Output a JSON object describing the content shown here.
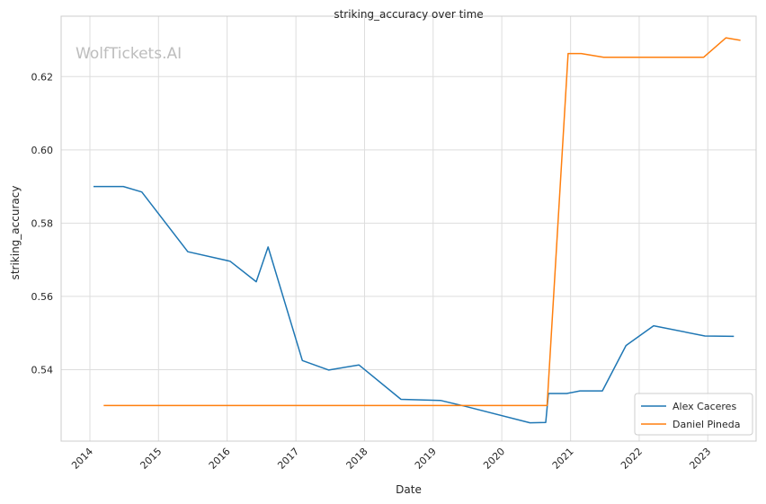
{
  "watermark": "WolfTickets.AI",
  "chart_data": {
    "type": "line",
    "title": "striking_accuracy over time",
    "xlabel": "Date",
    "ylabel": "striking_accuracy",
    "xlim": [
      "2013-08-01",
      "2023-09-15"
    ],
    "ylim": [
      0.5205,
      0.6365
    ],
    "x_ticks": [
      "2014",
      "2015",
      "2016",
      "2017",
      "2018",
      "2019",
      "2020",
      "2021",
      "2022",
      "2023"
    ],
    "y_ticks": [
      0.54,
      0.56,
      0.58,
      0.6,
      0.62
    ],
    "y_tick_labels": [
      "0.54",
      "0.56",
      "0.58",
      "0.60",
      "0.62"
    ],
    "grid": true,
    "legend_position": "bottom-right",
    "series": [
      {
        "name": "Alex Caceres",
        "color": "#1f77b4",
        "points": [
          [
            "2014-01-20",
            0.59
          ],
          [
            "2014-06-28",
            0.59
          ],
          [
            "2014-10-04",
            0.5885
          ],
          [
            "2015-06-06",
            0.5722
          ],
          [
            "2016-01-17",
            0.5696
          ],
          [
            "2016-06-04",
            0.564
          ],
          [
            "2016-08-06",
            0.5735
          ],
          [
            "2017-02-04",
            0.5425
          ],
          [
            "2017-06-25",
            0.5399
          ],
          [
            "2017-12-02",
            0.5413
          ],
          [
            "2018-07-14",
            0.5319
          ],
          [
            "2019-02-09",
            0.5316
          ],
          [
            "2019-06-22",
            0.53
          ],
          [
            "2020-05-30",
            0.5255
          ],
          [
            "2020-08-22",
            0.5256
          ],
          [
            "2020-09-05",
            0.5335
          ],
          [
            "2020-12-12",
            0.5335
          ],
          [
            "2021-02-20",
            0.5342
          ],
          [
            "2021-06-19",
            0.5342
          ],
          [
            "2021-10-23",
            0.5466
          ],
          [
            "2022-03-19",
            0.552
          ],
          [
            "2022-12-17",
            0.5492
          ],
          [
            "2023-05-20",
            0.5491
          ]
        ]
      },
      {
        "name": "Daniel Pineda",
        "color": "#ff7f0e",
        "points": [
          [
            "2014-03-15",
            0.5302
          ],
          [
            "2020-08-29",
            0.5302
          ],
          [
            "2020-12-19",
            0.6263
          ],
          [
            "2021-02-27",
            0.6263
          ],
          [
            "2021-06-26",
            0.6253
          ],
          [
            "2022-12-10",
            0.6253
          ],
          [
            "2023-04-08",
            0.6306
          ],
          [
            "2023-06-24",
            0.6299
          ]
        ]
      }
    ]
  }
}
